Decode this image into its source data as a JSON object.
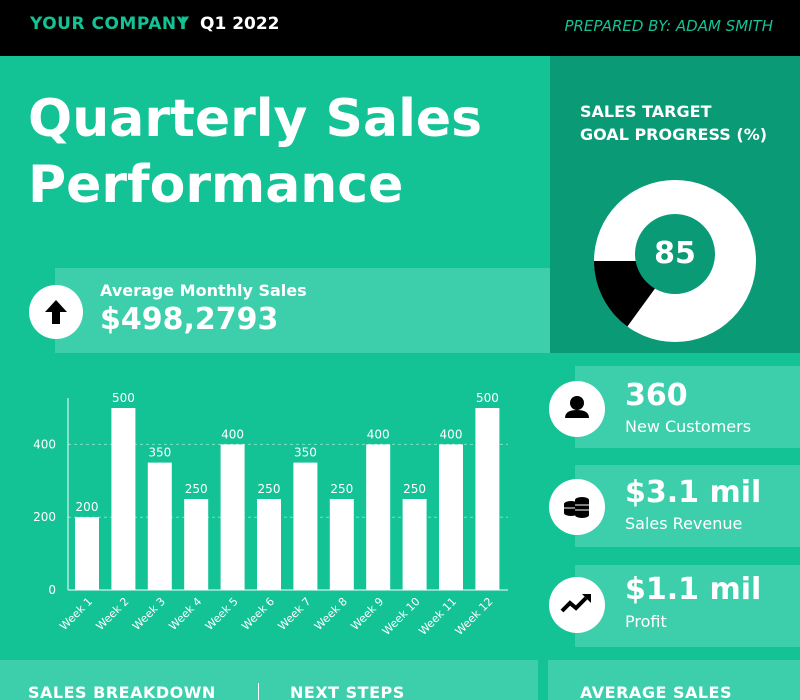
{
  "header": {
    "company": "YOUR COMPANY",
    "separator": "I",
    "quarter": "Q1 2022",
    "prepared_by": "PREPARED BY: ADAM SMITH"
  },
  "title": {
    "line1": "Quarterly Sales",
    "line2": "Performance"
  },
  "average_monthly": {
    "label": "Average Monthly Sales",
    "value": "$498,2793",
    "icon": "arrow-up-icon"
  },
  "sales_target": {
    "title_line1": "SALES TARGET",
    "title_line2": "GOAL PROGRESS (%)",
    "value": "85",
    "progress": 85
  },
  "stats": [
    {
      "value": "360",
      "label": "New Customers",
      "icon": "user-icon"
    },
    {
      "value": "$3.1 mil",
      "label": "Sales Revenue",
      "icon": "coins-icon"
    },
    {
      "value": "$1.1 mil",
      "label": "Profit",
      "icon": "trend-up-icon"
    }
  ],
  "bottom": {
    "sales_breakdown": "SALES BREAKDOWN",
    "next_steps": "NEXT STEPS",
    "average_sales": "AVERAGE SALES"
  },
  "colors": {
    "background": "#13c295",
    "band": "#3dcfac",
    "panel": "#0a9a76",
    "header": "#000000",
    "accent": "#13c295"
  },
  "chart_data": {
    "type": "bar",
    "categories": [
      "Week 1",
      "Week 2",
      "Week 3",
      "Week 4",
      "Week 5",
      "Week 6",
      "Week 7",
      "Week 8",
      "Week 9",
      "Week 10",
      "Week 11",
      "Week 12"
    ],
    "values": [
      200,
      500,
      350,
      250,
      400,
      250,
      350,
      250,
      400,
      250,
      400,
      500
    ],
    "data_labels": [
      "200",
      "500",
      "350",
      "250",
      "400",
      "250",
      "350",
      "250",
      "400",
      "250",
      "400",
      "500"
    ],
    "yticks": [
      "0",
      "200",
      "400"
    ],
    "ylim": [
      0,
      500
    ],
    "grid": true
  }
}
